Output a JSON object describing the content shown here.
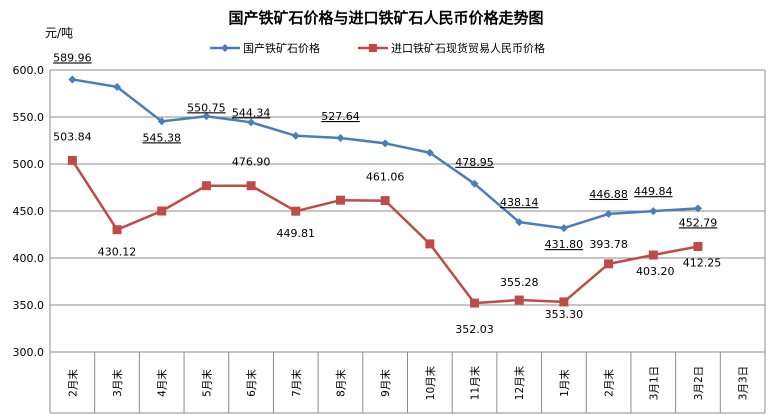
{
  "chart_data": {
    "type": "line",
    "title": "国产铁矿石价格与进口铁矿石人民币价格走势图",
    "ylabel": "元/吨",
    "xlabel": "",
    "ylim": [
      300,
      600
    ],
    "yticks": [
      "300.0",
      "350.0",
      "400.0",
      "450.0",
      "500.0",
      "550.0",
      "600.0"
    ],
    "grid": true,
    "legend_position": "top",
    "categories": [
      "2月末",
      "3月末",
      "4月末",
      "5月末",
      "6月末",
      "7月末",
      "8月末",
      "9月末",
      "10月末",
      "11月末",
      "12月末",
      "1月末",
      "2月末",
      "3月1日",
      "3月2日",
      "3月3日"
    ],
    "series": [
      {
        "name": "国产铁矿石价格",
        "color": "#4A7EBB",
        "marker": "diamond",
        "values": [
          589.96,
          582,
          545.38,
          550.75,
          544.34,
          530,
          527.64,
          522,
          512,
          478.95,
          438.14,
          431.8,
          446.88,
          449.84,
          452.79,
          null
        ],
        "labels": [
          "589.96",
          "",
          "545.38",
          "550.75",
          "544.34",
          "",
          "527.64",
          "",
          "",
          "478.95",
          "438.14",
          "431.80",
          "446.88",
          "449.84",
          "452.79",
          ""
        ]
      },
      {
        "name": "进口铁矿石现货贸易人民币价格",
        "color": "#BE4B48",
        "marker": "square",
        "values": [
          503.84,
          430.12,
          450,
          476.9,
          476.9,
          449.81,
          461.5,
          461.06,
          415,
          352.03,
          355.28,
          353.3,
          393.78,
          403.2,
          412.25,
          null
        ],
        "labels": [
          "503.84",
          "430.12",
          "",
          "",
          "476.90",
          "449.81",
          "",
          "461.06",
          "",
          "352.03",
          "355.28",
          "353.30",
          "393.78",
          "403.20",
          "412.25",
          ""
        ]
      }
    ]
  }
}
